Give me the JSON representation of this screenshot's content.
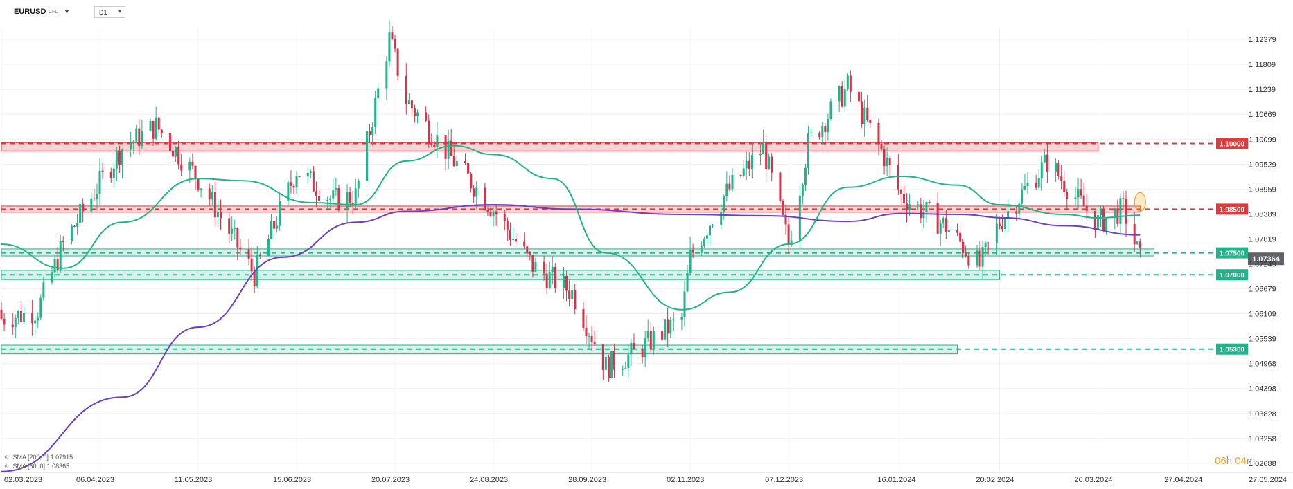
{
  "header": {
    "symbol": "EURUSD",
    "instrument_type": "CFD",
    "timeframe": "D1"
  },
  "indicators": [
    {
      "label": "SMA [200, 0]",
      "value": "1.07915",
      "color": "#6a3fc9"
    },
    {
      "label": "SMA [50, 0]",
      "value": "1.08365",
      "color": "#1fb58a"
    }
  ],
  "countdown": {
    "hours": "06",
    "minutes": "04",
    "hours_unit": "h",
    "minutes_unit": "m"
  },
  "chart_data": {
    "type": "candlestick",
    "symbol": "EURUSD",
    "timeframe": "D1",
    "ylim": [
      1.0248,
      1.1265
    ],
    "y_ticks": [
      "1.12379",
      "1.11809",
      "1.11239",
      "1.10669",
      "1.10099",
      "1.09529",
      "1.08959",
      "1.08389",
      "1.07819",
      "1.07249",
      "1.06679",
      "1.06109",
      "1.05539",
      "1.04968",
      "1.04398",
      "1.03828",
      "1.03258",
      "1.02688"
    ],
    "x_ticks": [
      "02.03.2023",
      "06.04.2023",
      "11.05.2023",
      "15.06.2023",
      "20.07.2023",
      "24.08.2023",
      "28.09.2023",
      "02.11.2023",
      "07.12.2023",
      "16.01.2024",
      "20.02.2024",
      "26.03.2024",
      "27.04.2024",
      "27.05.2024"
    ],
    "x_range": [
      "2023-03-02",
      "2024-05-27"
    ],
    "current_price": "1.07364",
    "levels": [
      {
        "label": "1.10000",
        "price": 1.1,
        "zone": [
          1.0983,
          1.1002
        ],
        "zone_start": "2023-03-02",
        "zone_end": "2024-03-26",
        "color": "#e03a3a"
      },
      {
        "label": "1.08500",
        "price": 1.085,
        "zone": [
          1.0843,
          1.0857
        ],
        "zone_start": "2023-03-02",
        "zone_end": "2024-04-10",
        "color": "#e03a3a"
      },
      {
        "label": "1.07500",
        "price": 1.075,
        "zone": [
          1.0743,
          1.0759
        ],
        "zone_start": "2023-03-02",
        "zone_end": "2024-04-15",
        "color": "#1fb58a"
      },
      {
        "label": "1.07000",
        "price": 1.07,
        "zone": [
          1.0689,
          1.071
        ],
        "zone_start": "2023-03-02",
        "zone_end": "2024-02-20",
        "color": "#1fb58a"
      },
      {
        "label": "1.05300",
        "price": 1.053,
        "zone": [
          1.0519,
          1.0539
        ],
        "zone_start": "2023-03-02",
        "zone_end": "2024-02-05",
        "color": "#1fb58a"
      }
    ],
    "highlight": {
      "date": "2024-04-10",
      "price_range": [
        1.0845,
        1.0888
      ],
      "color": "#f5a623"
    },
    "series": [
      {
        "name": "EURUSD",
        "kind": "close",
        "x": [
          "2023-03-02",
          "2023-03-10",
          "2023-03-15",
          "2023-03-24",
          "2023-04-06",
          "2023-04-14",
          "2023-04-26",
          "2023-05-11",
          "2023-05-31",
          "2023-06-15",
          "2023-06-28",
          "2023-07-06",
          "2023-07-18",
          "2023-07-24",
          "2023-08-10",
          "2023-08-24",
          "2023-09-07",
          "2023-09-21",
          "2023-10-03",
          "2023-10-13",
          "2023-10-30",
          "2023-11-02",
          "2023-11-14",
          "2023-11-28",
          "2023-12-07",
          "2023-12-14",
          "2023-12-28",
          "2024-01-10",
          "2024-01-16",
          "2024-02-01",
          "2024-02-13",
          "2024-02-20",
          "2024-03-08",
          "2024-03-19",
          "2024-03-26",
          "2024-04-04",
          "2024-04-10"
        ],
        "values": [
          1.06,
          1.061,
          1.062,
          1.077,
          1.091,
          1.099,
          1.104,
          1.092,
          1.07,
          1.094,
          1.087,
          1.088,
          1.124,
          1.11,
          1.096,
          1.085,
          1.072,
          1.066,
          1.049,
          1.052,
          1.06,
          1.074,
          1.088,
          1.099,
          1.077,
          1.1,
          1.113,
          1.097,
          1.088,
          1.081,
          1.072,
          1.082,
          1.096,
          1.087,
          1.082,
          1.085,
          1.0736
        ]
      },
      {
        "name": "SMA 200",
        "kind": "line",
        "x": [
          "2023-03-02",
          "2023-04-14",
          "2023-05-11",
          "2023-06-10",
          "2023-07-06",
          "2023-07-24",
          "2023-08-24",
          "2023-09-21",
          "2023-10-30",
          "2023-11-28",
          "2023-12-28",
          "2024-01-16",
          "2024-02-06",
          "2024-02-22",
          "2024-03-14",
          "2024-04-10"
        ],
        "values": [
          1.025,
          1.042,
          1.058,
          1.074,
          1.082,
          1.0845,
          1.086,
          1.085,
          1.0838,
          1.0835,
          1.0822,
          1.084,
          1.0838,
          1.083,
          1.0812,
          1.0791
        ]
      },
      {
        "name": "SMA 50",
        "kind": "line",
        "x": [
          "2023-03-02",
          "2023-03-24",
          "2023-04-14",
          "2023-05-11",
          "2023-05-27",
          "2023-06-20",
          "2023-07-06",
          "2023-07-24",
          "2023-08-10",
          "2023-08-24",
          "2023-09-14",
          "2023-10-03",
          "2023-10-30",
          "2023-11-16",
          "2023-12-07",
          "2023-12-28",
          "2024-01-16",
          "2024-02-05",
          "2024-02-20",
          "2024-03-14",
          "2024-03-26",
          "2024-04-10"
        ],
        "values": [
          1.077,
          1.0715,
          1.082,
          1.092,
          1.0915,
          1.0865,
          1.086,
          1.096,
          1.0995,
          1.0975,
          1.092,
          1.075,
          1.062,
          1.066,
          1.077,
          1.09,
          1.0925,
          1.0905,
          1.086,
          1.0838,
          1.083,
          1.0836
        ]
      }
    ]
  }
}
